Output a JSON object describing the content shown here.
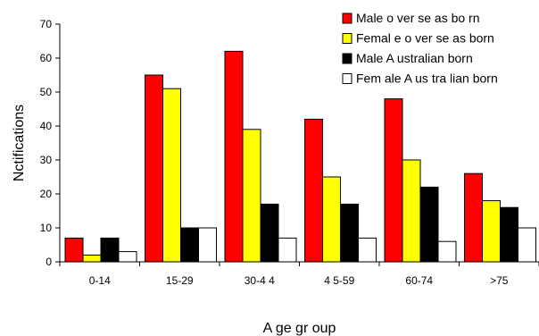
{
  "chart_data": {
    "type": "bar",
    "xlabel": "A ge gr oup",
    "ylabel": "Nctifications",
    "ylim": [
      0,
      70
    ],
    "yticks": [
      "0",
      "10",
      "20",
      "30",
      "40",
      "50",
      "60",
      "70"
    ],
    "categories": [
      "0-14",
      "15-29",
      "30-4 4",
      "4 5-59",
      "60-74",
      ">75"
    ],
    "legend_position": "top-right",
    "grid": false,
    "series": [
      {
        "name": "Male o ver se as bo rn",
        "color": "#ff0000",
        "values": [
          7,
          55,
          62,
          42,
          48,
          26
        ]
      },
      {
        "name": "Femal e o ver se as born",
        "color": "#ffff00",
        "values": [
          2,
          51,
          39,
          25,
          30,
          18
        ]
      },
      {
        "name": "Male A ustralian born",
        "color": "#000000",
        "values": [
          7,
          10,
          17,
          17,
          22,
          16
        ]
      },
      {
        "name": "Fem ale A us tra lian born",
        "color": "#ffffff",
        "values": [
          3,
          10,
          7,
          7,
          6,
          10
        ]
      }
    ]
  }
}
